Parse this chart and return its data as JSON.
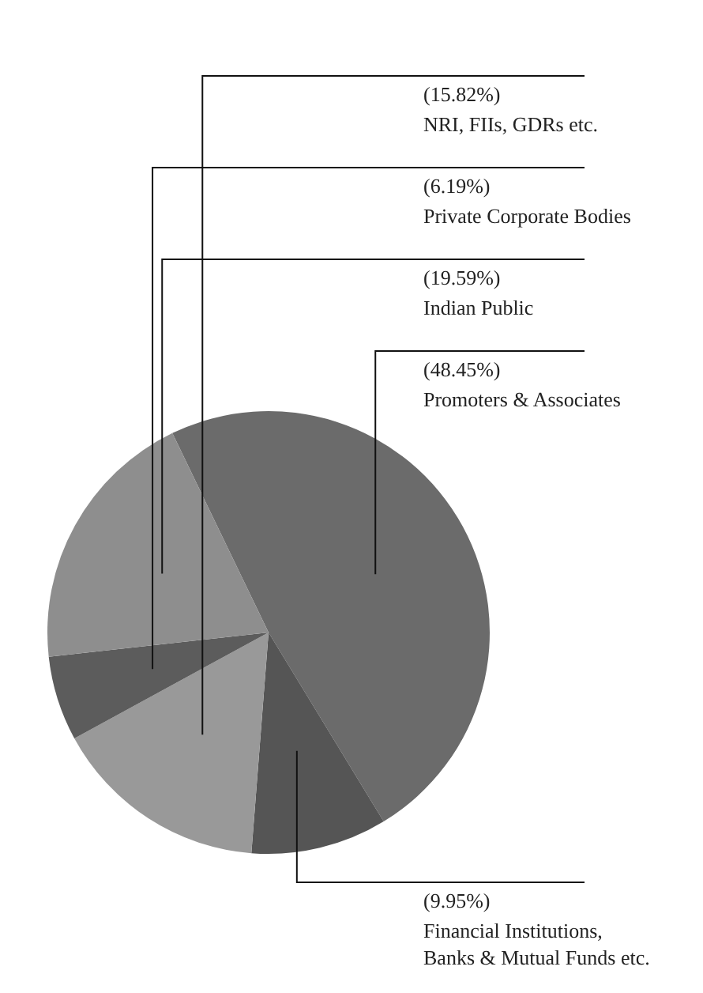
{
  "chart_data": {
    "type": "pie",
    "categories": [
      "Promoters & Associates",
      "Financial Institutions,\nBanks & Mutual  Funds etc.",
      "NRI, FIIs, GDRs etc.",
      "Private Corporate Bodies",
      "Indian Public"
    ],
    "values": [
      48.45,
      9.95,
      15.82,
      6.19,
      19.59
    ],
    "value_labels": [
      "(48.45%)",
      "(9.95%)",
      "(15.82%)",
      "(6.19%)",
      "(19.59%)"
    ],
    "colors": [
      "#6b6b6b",
      "#555555",
      "#999999",
      "#5c5c5c",
      "#8e8e8e"
    ]
  }
}
